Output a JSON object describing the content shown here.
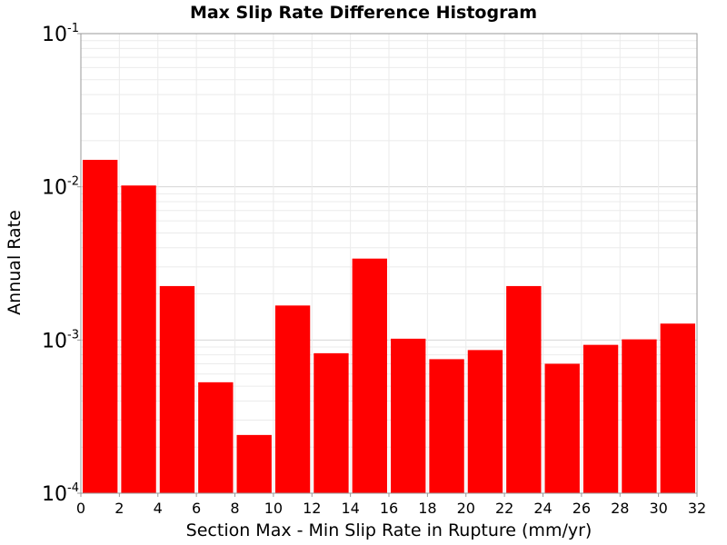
{
  "chart_data": {
    "type": "bar",
    "title": "Max Slip Rate Difference Histogram",
    "xlabel": "Section Max - Min Slip Rate in Rupture (mm/yr)",
    "ylabel": "Annual Rate",
    "xlim": [
      0,
      32
    ],
    "ylim": [
      0.0001,
      0.1
    ],
    "yscale": "log",
    "bin_width": 2,
    "x": [
      1,
      3,
      5,
      7,
      9,
      11,
      13,
      15,
      17,
      19,
      21,
      23,
      25,
      27,
      29,
      31
    ],
    "values": [
      0.015,
      0.0102,
      0.00225,
      0.00053,
      0.00024,
      0.00168,
      0.00082,
      0.0034,
      0.00102,
      0.00075,
      0.00086,
      0.00225,
      0.0007,
      0.00093,
      0.00101,
      0.00128
    ],
    "x_ticks": [
      "0",
      "2",
      "4",
      "6",
      "8",
      "10",
      "12",
      "14",
      "16",
      "18",
      "20",
      "22",
      "24",
      "26",
      "28",
      "30",
      "32"
    ],
    "y_ticks": [
      {
        "base": "10",
        "exp": "-4"
      },
      {
        "base": "10",
        "exp": "-3"
      },
      {
        "base": "10",
        "exp": "-2"
      },
      {
        "base": "10",
        "exp": "-1"
      }
    ],
    "bar_color": "#ff0000",
    "grid": true,
    "legend": "none"
  }
}
